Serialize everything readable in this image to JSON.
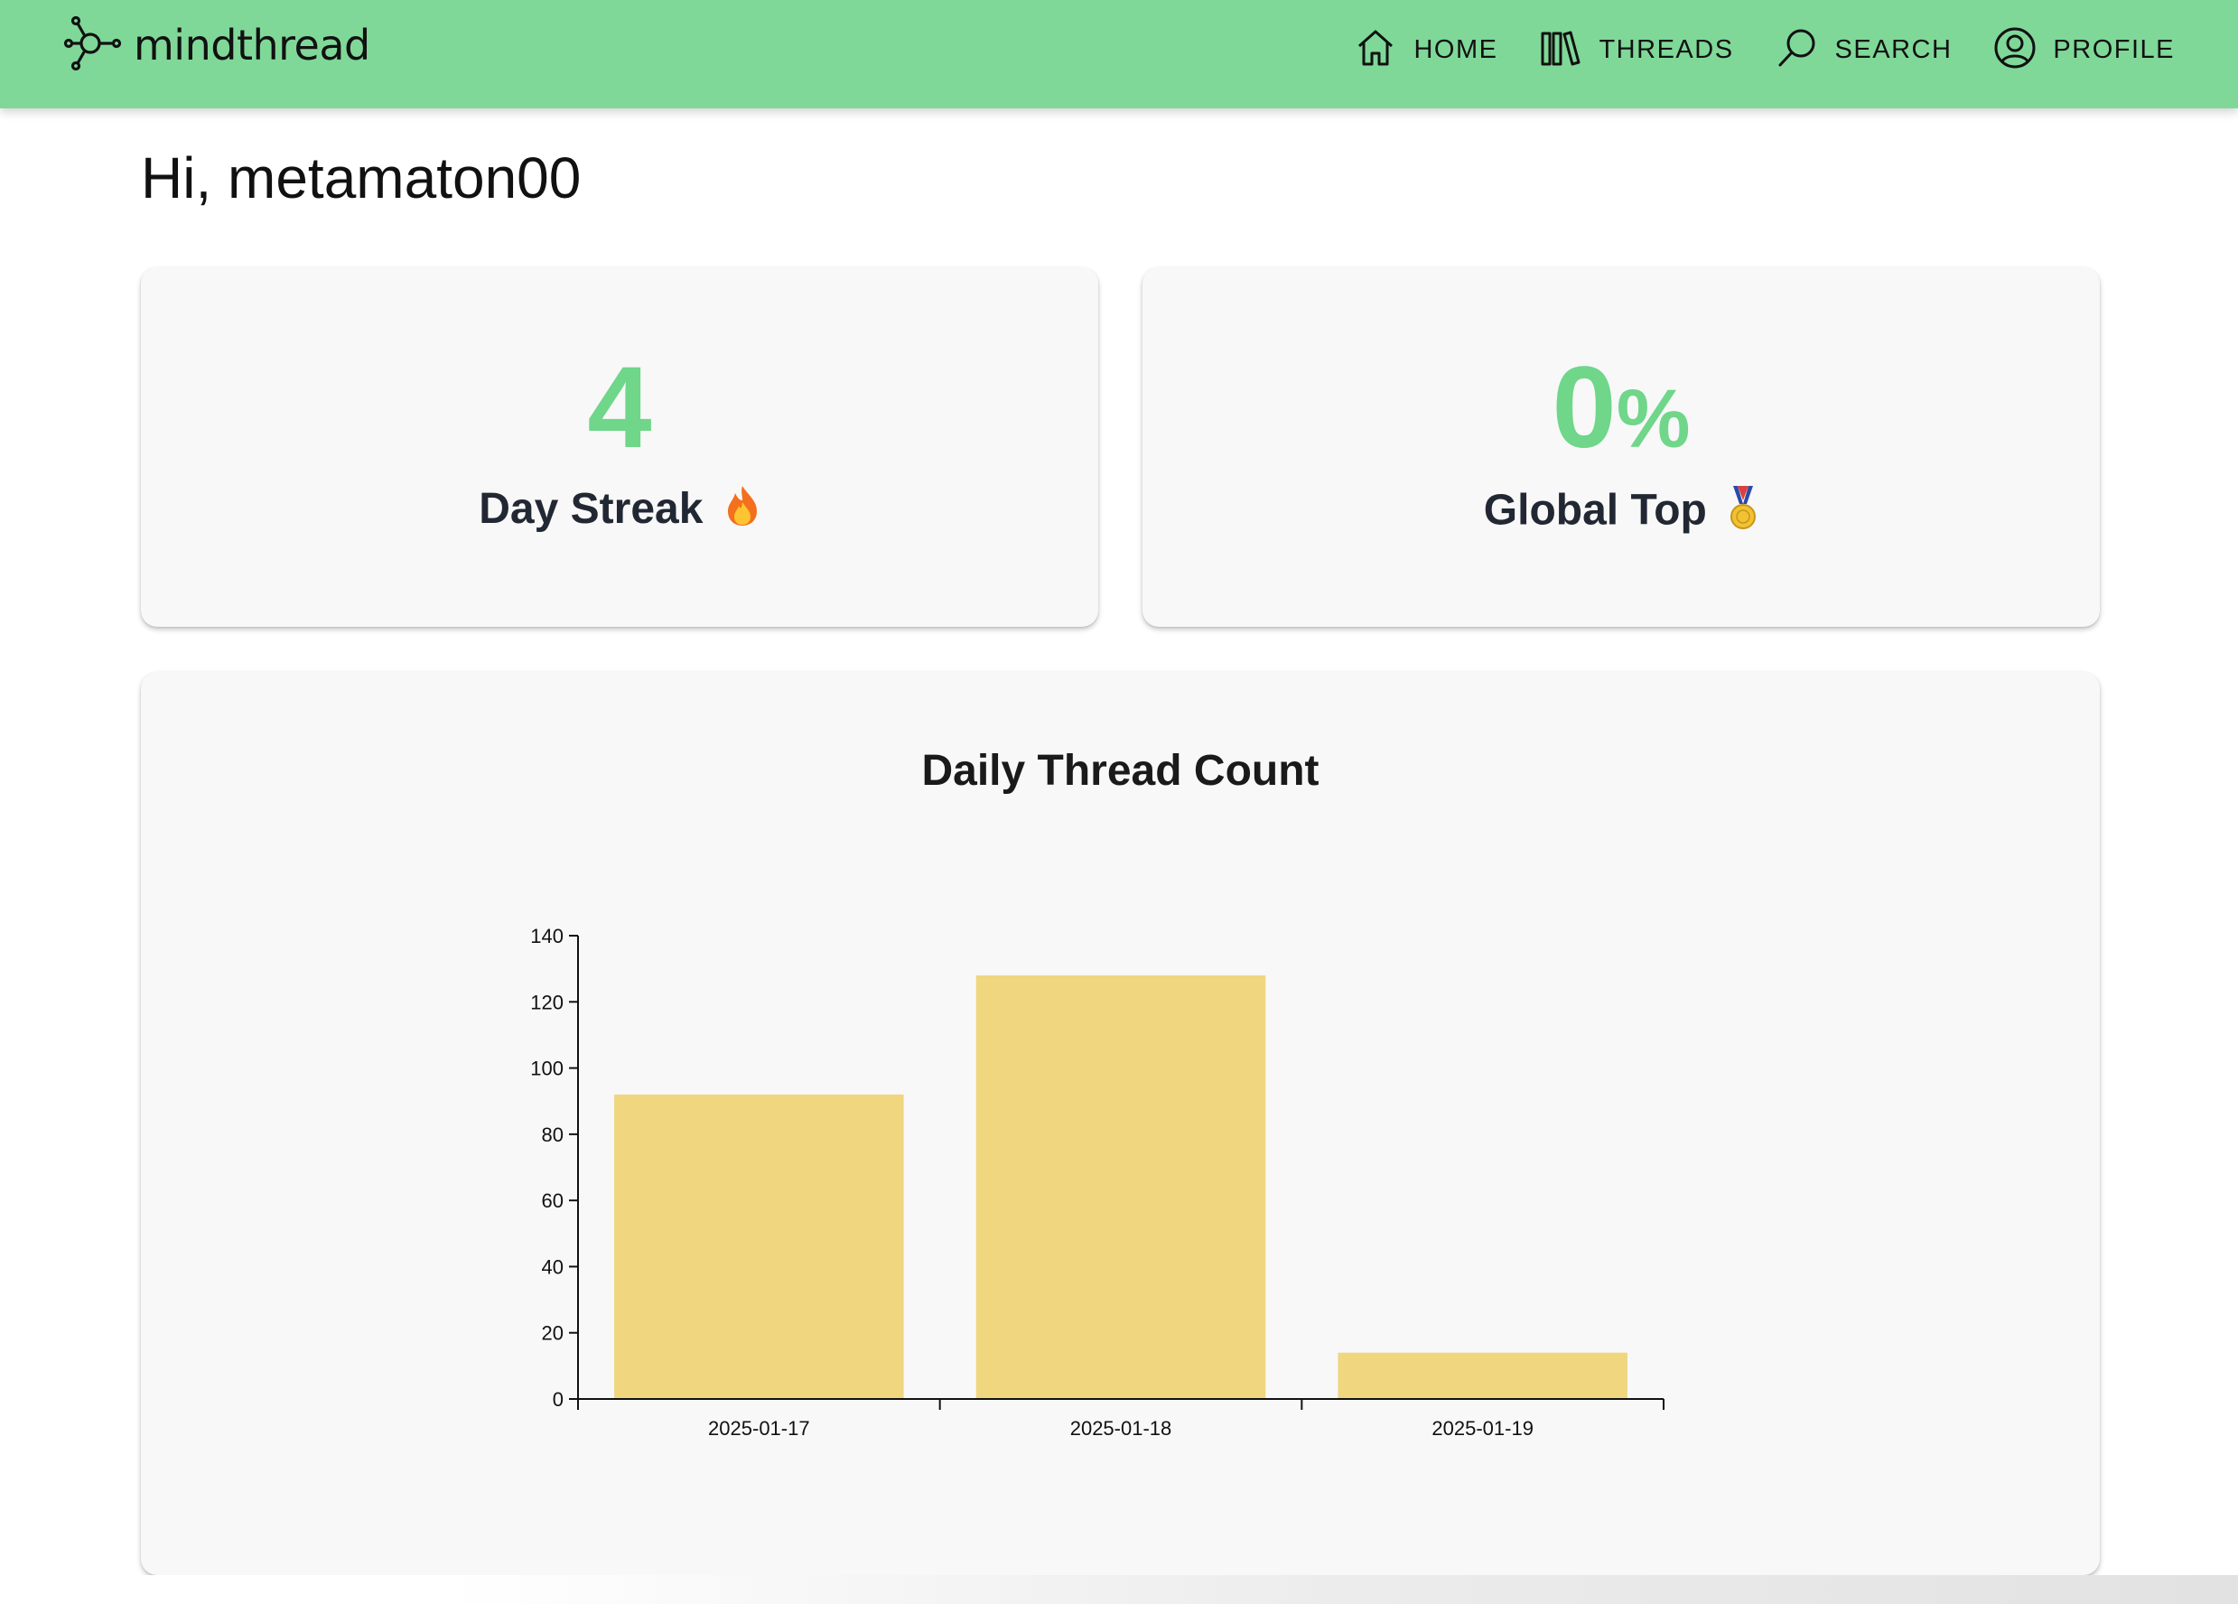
{
  "brand": {
    "name": "mindthread",
    "icon": "network-node-icon"
  },
  "nav": [
    {
      "label": "HOME",
      "icon": "home-icon"
    },
    {
      "label": "THREADS",
      "icon": "books-icon"
    },
    {
      "label": "SEARCH",
      "icon": "search-icon"
    },
    {
      "label": "PROFILE",
      "icon": "user-circle-icon"
    }
  ],
  "greeting": "Hi, metamaton00",
  "stats": {
    "streak": {
      "value": "4",
      "label": "Day Streak",
      "emoji": "🔥"
    },
    "global": {
      "value": "0",
      "unit": "%",
      "label": "Global Top",
      "emoji": "🏅"
    }
  },
  "colors": {
    "navbar": "#7fd898",
    "accent": "#6fd68a",
    "bar": "#f0d67f",
    "card": "#f8f8f8"
  },
  "chart_data": {
    "type": "bar",
    "title": "Daily Thread Count",
    "categories": [
      "2025-01-17",
      "2025-01-18",
      "2025-01-19"
    ],
    "values": [
      92,
      128,
      14
    ],
    "yticks": [
      0,
      20,
      40,
      60,
      80,
      100,
      120,
      140
    ],
    "ylim": [
      0,
      140
    ],
    "xlabel": "",
    "ylabel": "",
    "grid": false,
    "legend": "none"
  }
}
